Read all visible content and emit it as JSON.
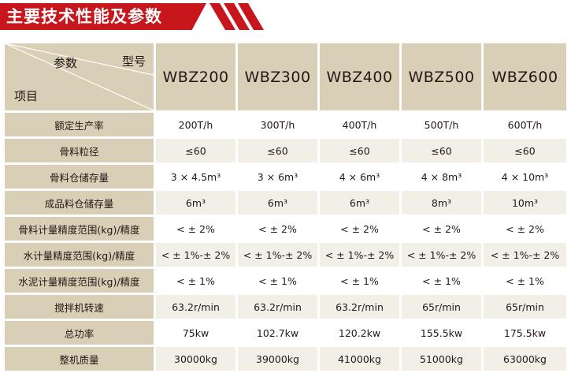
{
  "banner": {
    "title": "主要技术性能及参数",
    "color": "#c8161d"
  },
  "header": {
    "param_label": "参数",
    "model_label": "型号",
    "item_label": "项目",
    "models": [
      "WBZ200",
      "WBZ300",
      "WBZ400",
      "WBZ500",
      "WBZ600"
    ]
  },
  "rows": [
    {
      "label": "额定生产率",
      "values": [
        "200T/h",
        "300T/h",
        "400T/h",
        "500T/h",
        "600T/h"
      ]
    },
    {
      "label": "骨料粒径",
      "values": [
        "≤60",
        "≤60",
        "≤60",
        "≤60",
        "≤60"
      ]
    },
    {
      "label": "骨料仓储存量",
      "values": [
        "3 × 4.5m³",
        "3 × 6m³",
        "4 × 6m³",
        "4 × 8m³",
        "4 × 10m³"
      ]
    },
    {
      "label": "成品料仓储存量",
      "values": [
        "6m³",
        "6m³",
        "6m³",
        "8m³",
        "10m³"
      ]
    },
    {
      "label": "骨料计量精度范围(kg)/精度",
      "values": [
        "< ± 2%",
        "< ± 2%",
        "< ± 2%",
        "< ± 2%",
        "< ± 2%"
      ]
    },
    {
      "label": "水计量精度范围(kg)/精度",
      "values": [
        "< ± 1%-± 2%",
        "< ± 1%-± 2%",
        "< ± 1%-± 2%",
        "< ± 1%-± 2%",
        "< ± 1%-± 2%"
      ]
    },
    {
      "label": "水泥计量精度范围(kg)/精度",
      "values": [
        "< ± 1%",
        "< ± 1%",
        "< ± 1%",
        "< ± 1%",
        "< ± 1%"
      ]
    },
    {
      "label": "搅拌机转速",
      "values": [
        "63.2r/min",
        "63.2r/min",
        "63.2r/min",
        "65r/min",
        "65r/min"
      ]
    },
    {
      "label": "总功率",
      "values": [
        "75kw",
        "102.7kw",
        "120.2kw",
        "155.5kw",
        "175.5kw"
      ]
    },
    {
      "label": "整机质量",
      "values": [
        "30000kg",
        "39000kg",
        "41000kg",
        "51000kg",
        "63000kg"
      ]
    }
  ]
}
